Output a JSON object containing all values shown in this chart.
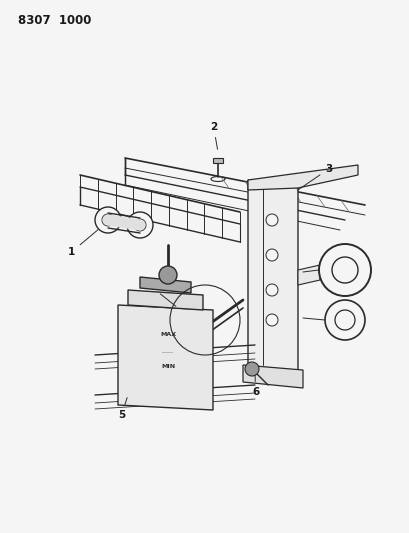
{
  "title_code": "8307  1000",
  "bg_color": "#f5f5f5",
  "line_color": "#2a2a2a",
  "label_color": "#1a1a1a",
  "title_fontsize": 8.5,
  "label_fontsize": 7.5
}
